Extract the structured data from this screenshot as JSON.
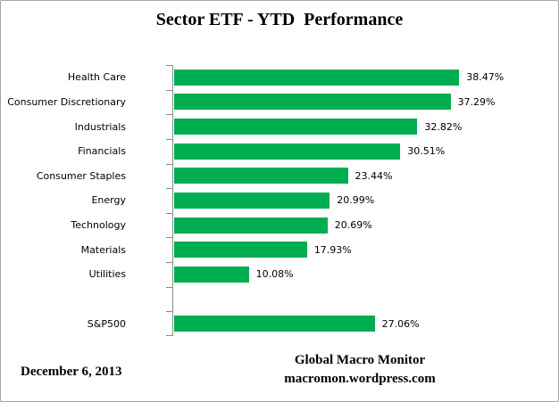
{
  "chart_data": {
    "type": "bar",
    "orientation": "horizontal",
    "title": "Sector ETF - YTD  Performance",
    "categories": [
      "Health Care",
      "Consumer Discretionary",
      "Industrials",
      "Financials",
      "Consumer Staples",
      "Energy",
      "Technology",
      "Materials",
      "Utilities",
      "",
      "S&P500"
    ],
    "values": [
      38.47,
      37.29,
      32.82,
      30.51,
      23.44,
      20.99,
      20.69,
      17.93,
      10.08,
      null,
      27.06
    ],
    "value_labels": [
      "38.47%",
      "37.29%",
      "32.82%",
      "30.51%",
      "23.44%",
      "20.99%",
      "20.69%",
      "17.93%",
      "10.08%",
      "",
      "27.06%"
    ],
    "xlim": [
      0,
      45
    ],
    "grid": false,
    "legend": false,
    "bar_color": "#00AD50",
    "axis_color": "#8C8C8C",
    "text_color": "#000000"
  },
  "footer": {
    "date": "December 6, 2013",
    "credit_line1": "Global Macro Monitor",
    "credit_line2": "macromon.wordpress.com"
  }
}
